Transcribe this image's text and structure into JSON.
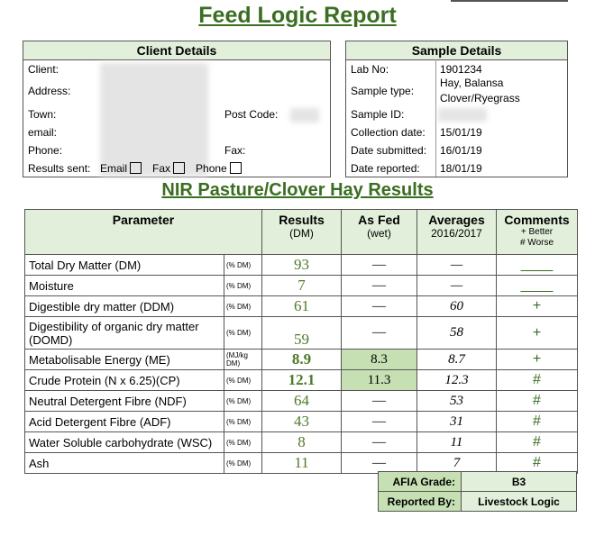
{
  "title": "Feed Logic Report",
  "client_details": {
    "heading": "Client Details",
    "labels": [
      "Client:",
      "Address:",
      "Town:",
      "email:",
      "Phone:",
      "Results sent:"
    ],
    "post_code_label": "Post Code:",
    "fax_label": "Fax:",
    "options": [
      "Email",
      "Fax",
      "Phone"
    ]
  },
  "sample_details": {
    "heading": "Sample Details",
    "rows": [
      {
        "label": "Lab No:",
        "value": [
          "1901234"
        ]
      },
      {
        "label": "Sample type:",
        "value": [
          "Hay, Balansa",
          "Clover/Ryegrass"
        ]
      },
      {
        "label": "Sample ID:",
        "value": []
      },
      {
        "label": "Collection date:",
        "value": [
          "15/01/19"
        ]
      },
      {
        "label": "Date submitted:",
        "value": [
          "16/01/19"
        ]
      },
      {
        "label": "Date reported:",
        "value": [
          "18/01/19"
        ]
      }
    ]
  },
  "results": {
    "title": "NIR Pasture/Clover Hay Results",
    "columns": [
      {
        "title": "Parameter"
      },
      {
        "title": "Results",
        "sub": [
          "(DM)"
        ]
      },
      {
        "title": "As Fed",
        "sub": [
          "(wet)"
        ]
      },
      {
        "title": "Averages",
        "sub": [
          "2016/2017"
        ]
      },
      {
        "title": "Comments",
        "sub": [
          "+ Better",
          "# Worse"
        ]
      }
    ],
    "rows": [
      {
        "parameter": "Total Dry Matter (DM)",
        "unit": "(% DM)",
        "result": 93,
        "as_fed": "—",
        "average": "—",
        "comment": "____"
      },
      {
        "parameter": "Moisture",
        "unit": "(% DM)",
        "result": 7,
        "as_fed": "—",
        "average": "—",
        "comment": "____"
      },
      {
        "parameter": "Digestible dry matter (DDM)",
        "unit": "(% DM)",
        "result": 61,
        "as_fed": "—",
        "average": 60,
        "comment": "+"
      },
      {
        "parameter": "Digestibility of organic dry matter (DOMD)",
        "unit": "(% DM)",
        "result": 59,
        "as_fed": "—",
        "average": 58,
        "comment": "+"
      },
      {
        "parameter": "Metabolisable Energy (ME)",
        "unit": "(MJ/kg DM)",
        "result": 8.9,
        "as_fed": 8.3,
        "average": 8.7,
        "comment": "+"
      },
      {
        "parameter": "Crude Protein (N x 6.25)(CP)",
        "unit": "(% DM)",
        "result": 12.1,
        "as_fed": 11.3,
        "average": 12.3,
        "comment": "#"
      },
      {
        "parameter": "Neutral Detergent Fibre (NDF)",
        "unit": "(% DM)",
        "result": 64,
        "as_fed": "—",
        "average": 53,
        "comment": "#"
      },
      {
        "parameter": "Acid Detergent Fibre (ADF)",
        "unit": "(% DM)",
        "result": 43,
        "as_fed": "—",
        "average": 31,
        "comment": "#"
      },
      {
        "parameter": "Water Soluble carbohydrate (WSC)",
        "unit": "(% DM)",
        "result": 8,
        "as_fed": "—",
        "average": 11,
        "comment": "#"
      },
      {
        "parameter": "Ash",
        "unit": "(% DM)",
        "result": 11,
        "as_fed": "—",
        "average": 7,
        "comment": "#"
      }
    ]
  },
  "footer": {
    "grade_label": "AFIA Grade:",
    "grade": "B3",
    "reported_by_label": "Reported By:",
    "reported_by": "Livestock Logic"
  }
}
